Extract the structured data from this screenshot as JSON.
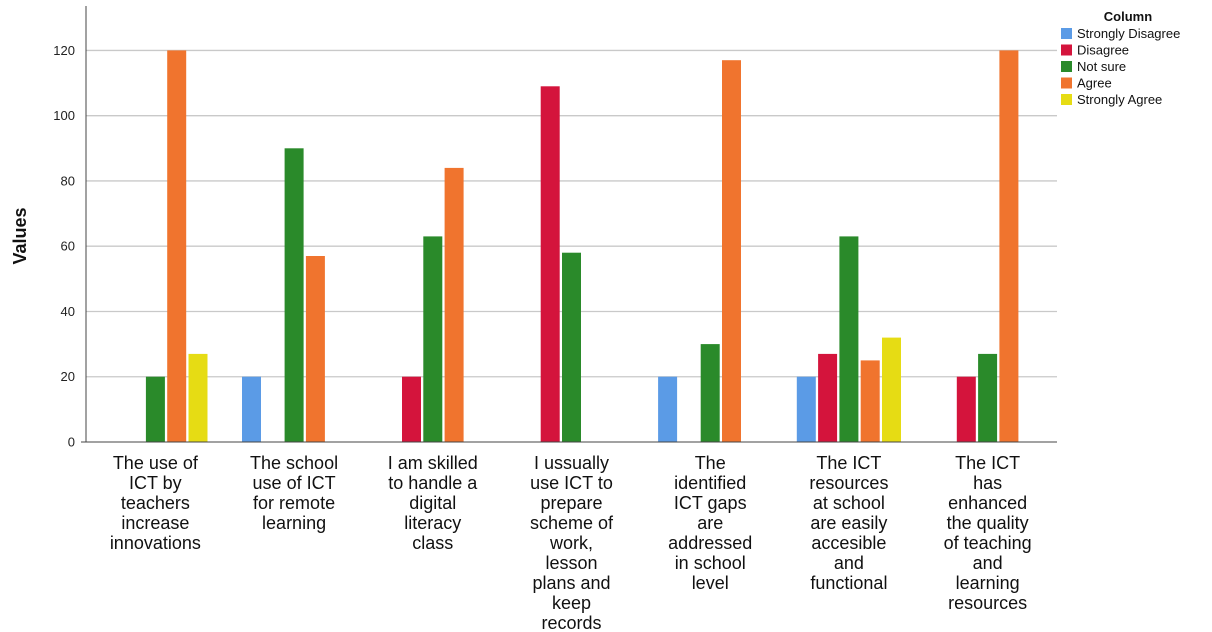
{
  "chart_data": {
    "type": "bar",
    "ylabel": "Values",
    "ylim": [
      0,
      133
    ],
    "yticks": [
      0,
      20,
      40,
      60,
      80,
      100,
      120
    ],
    "grid": true,
    "legend": {
      "title": "Column",
      "placement": "top-right"
    },
    "categories": [
      [
        "The use of",
        "ICT by",
        "teachers",
        "increase",
        "innovations"
      ],
      [
        "The school",
        "use of ICT",
        "for remote",
        "learning"
      ],
      [
        "I am skilled",
        "to handle a",
        "digital",
        "literacy",
        "class"
      ],
      [
        "I ussually",
        "use ICT to",
        "prepare",
        "scheme of",
        "work,",
        "lesson",
        "plans and",
        "keep",
        "records"
      ],
      [
        "The",
        "identified",
        "ICT gaps",
        "are",
        "addressed",
        "in school",
        "level"
      ],
      [
        "The ICT",
        "resources",
        "at school",
        "are easily",
        "accesible",
        "and",
        "functional"
      ],
      [
        "The ICT",
        "has",
        "enhanced",
        "the quality",
        "of teaching",
        "and",
        "learning",
        "resources"
      ]
    ],
    "series": [
      {
        "name": "Strongly Disagree",
        "color": "#5b9be6",
        "values": [
          null,
          20,
          null,
          null,
          20,
          20,
          null
        ]
      },
      {
        "name": "Disagree",
        "color": "#d4143c",
        "values": [
          null,
          null,
          20,
          109,
          null,
          27,
          20
        ]
      },
      {
        "name": "Not sure",
        "color": "#2a8a2a",
        "values": [
          20,
          90,
          63,
          58,
          30,
          63,
          27
        ]
      },
      {
        "name": "Agree",
        "color": "#f0742e",
        "values": [
          120,
          57,
          84,
          null,
          117,
          25,
          120
        ]
      },
      {
        "name": "Strongly Agree",
        "color": "#e6dc14",
        "values": [
          27,
          null,
          null,
          null,
          null,
          32,
          null
        ]
      }
    ]
  }
}
